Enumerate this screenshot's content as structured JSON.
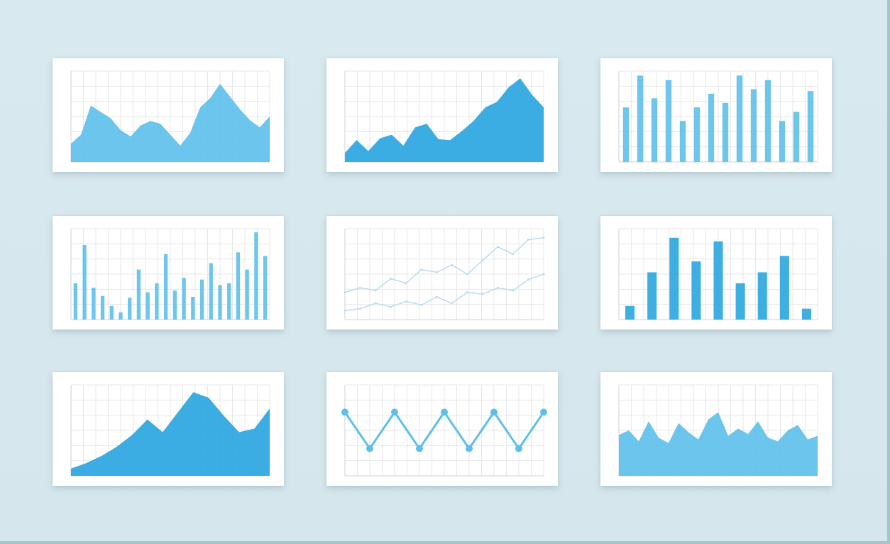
{
  "colors": {
    "background": "#d9e9ee",
    "accent": "#2aa6df",
    "accent_light": "#5ec0ea",
    "grid": "#e7e7e7",
    "card": "#ffffff"
  },
  "chart_data": [
    {
      "type": "area",
      "grid": true,
      "series": [
        {
          "values": [
            20,
            30,
            62,
            55,
            48,
            35,
            28,
            40,
            45,
            42,
            30,
            18,
            32,
            60,
            70,
            86,
            72,
            58,
            46,
            38,
            50
          ]
        }
      ]
    },
    {
      "type": "area",
      "grid": true,
      "series": [
        {
          "values": [
            10,
            24,
            12,
            26,
            30,
            18,
            38,
            42,
            25,
            24,
            34,
            45,
            60,
            66,
            82,
            92,
            74,
            60
          ]
        }
      ]
    },
    {
      "type": "bar",
      "grid": true,
      "series": [
        {
          "values": [
            60,
            95,
            70,
            90,
            45,
            60,
            75,
            65,
            95,
            80,
            90,
            45,
            55,
            78
          ]
        }
      ]
    },
    {
      "type": "bar",
      "grid": true,
      "series": [
        {
          "values": [
            40,
            82,
            35,
            26,
            15,
            8,
            24,
            55,
            30,
            40,
            72,
            32,
            46,
            25,
            44,
            62,
            38,
            40,
            74,
            55,
            96,
            70
          ]
        }
      ]
    },
    {
      "type": "line",
      "grid": true,
      "series": [
        {
          "values": [
            30,
            35,
            32,
            45,
            40,
            55,
            52,
            60,
            50,
            65,
            80,
            72,
            88,
            90
          ]
        },
        {
          "values": [
            10,
            12,
            18,
            14,
            20,
            16,
            25,
            18,
            30,
            28,
            35,
            32,
            44,
            50
          ]
        }
      ]
    },
    {
      "type": "bar",
      "grid": true,
      "series": [
        {
          "values": [
            15,
            52,
            90,
            64,
            86,
            40,
            52,
            70,
            12
          ]
        }
      ]
    },
    {
      "type": "area",
      "grid": true,
      "series": [
        {
          "values": [
            8,
            14,
            22,
            32,
            45,
            62,
            48,
            70,
            92,
            86,
            66,
            48,
            52,
            74
          ]
        }
      ]
    },
    {
      "type": "line",
      "grid": true,
      "series": [
        {
          "values": [
            70,
            30,
            70,
            30,
            70,
            30,
            70,
            30,
            70
          ]
        }
      ]
    },
    {
      "type": "area",
      "grid": true,
      "series": [
        {
          "values": [
            45,
            50,
            38,
            60,
            42,
            36,
            58,
            48,
            40,
            62,
            70,
            44,
            52,
            46,
            60,
            42,
            38,
            50,
            56,
            40,
            44
          ]
        }
      ]
    }
  ]
}
